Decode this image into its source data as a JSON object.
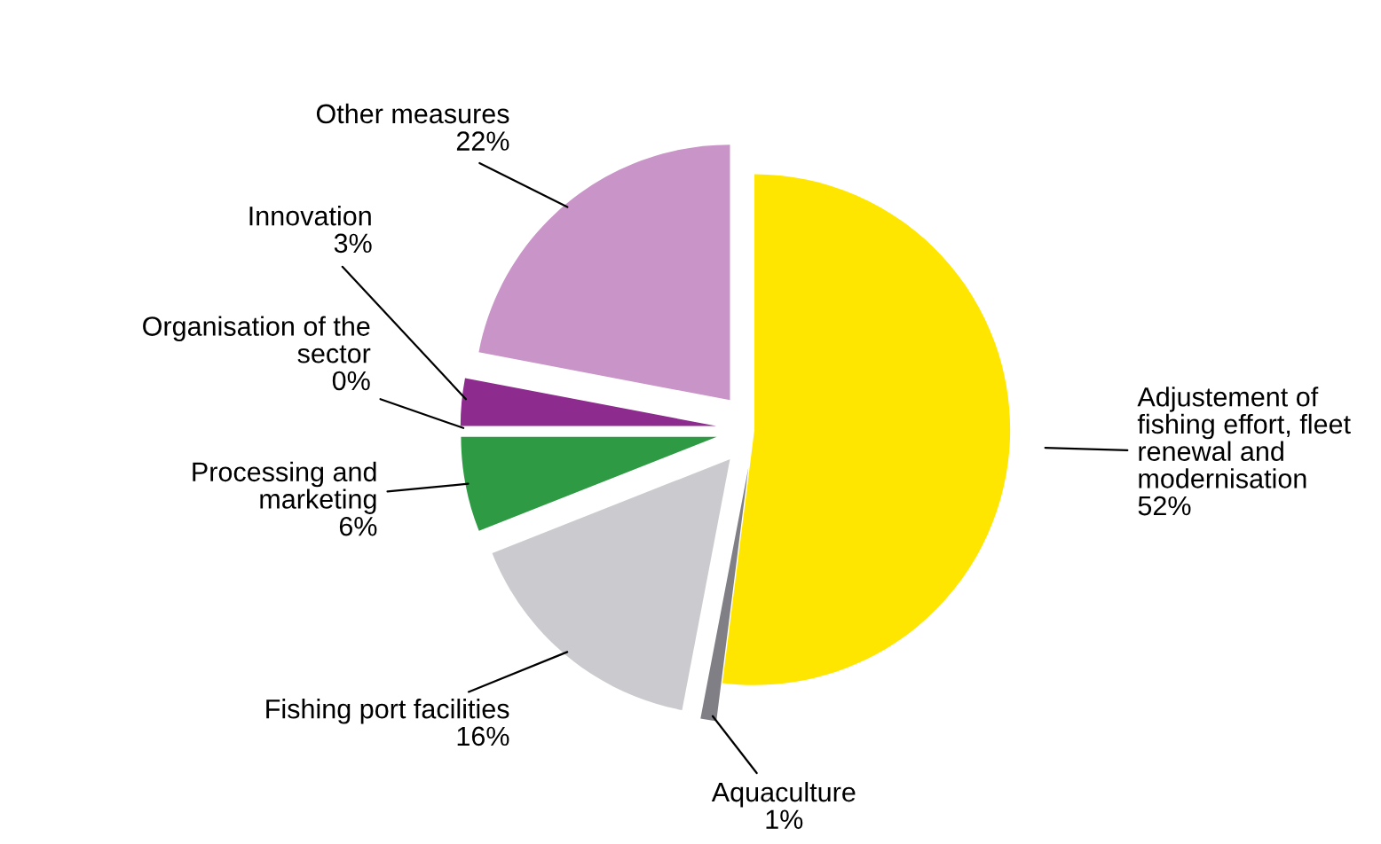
{
  "chart_data": {
    "type": "pie",
    "categories": [
      "Adjustement of\nfishing effort, fleet\nrenewal and\nmodernisation",
      "Aquaculture",
      "Fishing port facilities",
      "Processing and\nmarketing",
      "Organisation of the\nsector",
      "Innovation",
      "Other measures"
    ],
    "values": [
      52,
      1,
      16,
      6,
      0,
      3,
      22
    ],
    "value_labels": [
      "52%",
      "1%",
      "16%",
      "6%",
      "0%",
      "3%",
      "22%"
    ],
    "colors": [
      "#ffe600",
      "#7f7f85",
      "#cbcbcf",
      "#2e9a44",
      "#ffffff",
      "#8e2b8e",
      "#c994c7"
    ],
    "legend": false
  }
}
